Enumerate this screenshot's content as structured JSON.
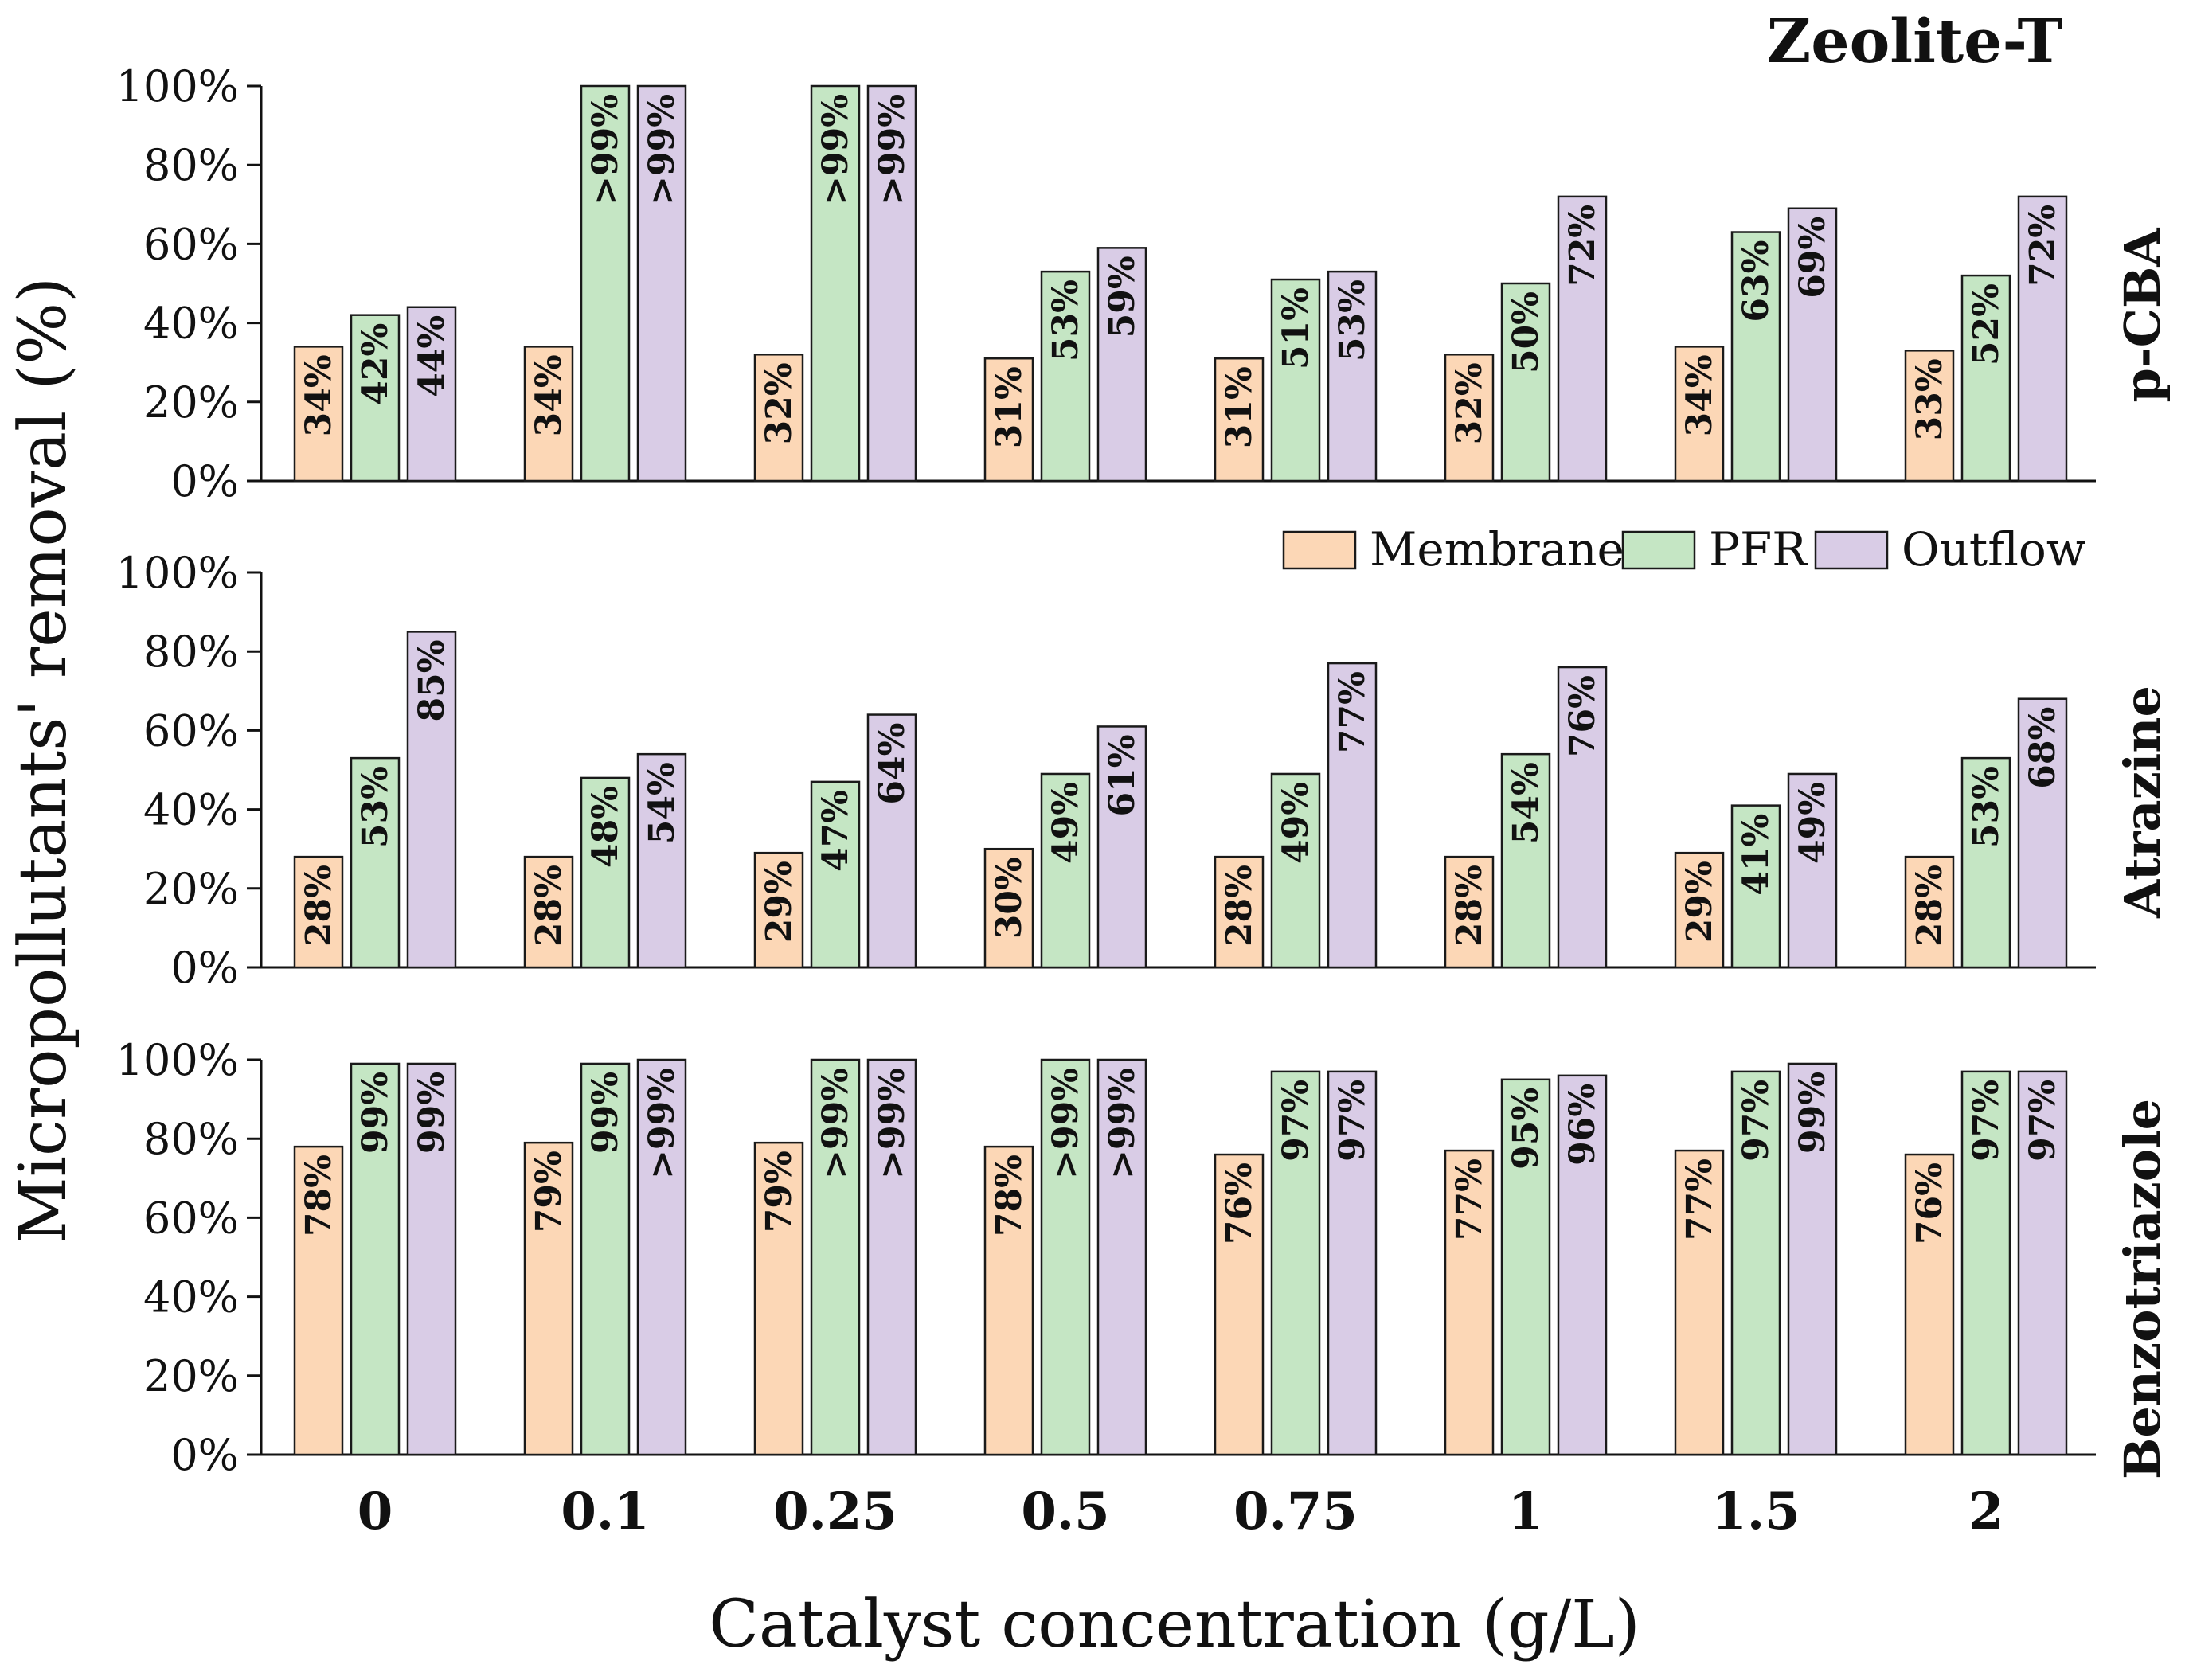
{
  "chart_data": {
    "type": "bar",
    "title": "Zeolite-T",
    "xlabel": "Catalyst concentration (g/L)",
    "ylabel": "Micropollutants' removal (%)",
    "categories": [
      "0",
      "0.1",
      "0.25",
      "0.5",
      "0.75",
      "1",
      "1.5",
      "2"
    ],
    "ylim": [
      0,
      100
    ],
    "yticks": [
      "0%",
      "20%",
      "40%",
      "60%",
      "80%",
      "100%"
    ],
    "legend": {
      "placement": "top-right of Atrazine panel",
      "entries": [
        "Membrane",
        "PFR",
        "Outflow"
      ]
    },
    "colors": {
      "Membrane": "#fcd7b6",
      "PFR": "#c5e6c4",
      "Outflow": "#d9cce6",
      "edge": "#1a1a1a"
    },
    "panels": [
      {
        "name": "p-CBA",
        "series": [
          {
            "name": "Membrane",
            "values": [
              34,
              34,
              32,
              31,
              31,
              32,
              34,
              33
            ],
            "labels": [
              "34%",
              "34%",
              "32%",
              "31%",
              "31%",
              "32%",
              "34%",
              "33%"
            ]
          },
          {
            "name": "PFR",
            "values": [
              42,
              100,
              100,
              53,
              51,
              50,
              63,
              52
            ],
            "labels": [
              "42%",
              ">99%",
              ">99%",
              "53%",
              "51%",
              "50%",
              "63%",
              "52%"
            ]
          },
          {
            "name": "Outflow",
            "values": [
              44,
              100,
              100,
              59,
              53,
              72,
              69,
              72
            ],
            "labels": [
              "44%",
              ">99%",
              ">99%",
              "59%",
              "53%",
              "72%",
              "69%",
              "72%"
            ]
          }
        ]
      },
      {
        "name": "Atrazine",
        "series": [
          {
            "name": "Membrane",
            "values": [
              28,
              28,
              29,
              30,
              28,
              28,
              29,
              28
            ],
            "labels": [
              "28%",
              "28%",
              "29%",
              "30%",
              "28%",
              "28%",
              "29%",
              "28%"
            ]
          },
          {
            "name": "PFR",
            "values": [
              53,
              48,
              47,
              49,
              49,
              54,
              41,
              53
            ],
            "labels": [
              "53%",
              "48%",
              "47%",
              "49%",
              "49%",
              "54%",
              "41%",
              "53%"
            ]
          },
          {
            "name": "Outflow",
            "values": [
              85,
              54,
              64,
              61,
              77,
              76,
              49,
              68
            ],
            "labels": [
              "85%",
              "54%",
              "64%",
              "61%",
              "77%",
              "76%",
              "49%",
              "68%"
            ]
          }
        ]
      },
      {
        "name": "Benzotriazole",
        "series": [
          {
            "name": "Membrane",
            "values": [
              78,
              79,
              79,
              78,
              76,
              77,
              77,
              76
            ],
            "labels": [
              "78%",
              "79%",
              "79%",
              "78%",
              "76%",
              "77%",
              "77%",
              "76%"
            ]
          },
          {
            "name": "PFR",
            "values": [
              99,
              99,
              100,
              100,
              97,
              95,
              97,
              97
            ],
            "labels": [
              "99%",
              "99%",
              ">99%",
              ">99%",
              "97%",
              "95%",
              "97%",
              "97%"
            ]
          },
          {
            "name": "Outflow",
            "values": [
              99,
              100,
              100,
              100,
              97,
              96,
              99,
              97
            ],
            "labels": [
              "99%",
              ">99%",
              ">99%",
              ">99%",
              "97%",
              "96%",
              "99%",
              "97%"
            ]
          }
        ]
      }
    ]
  }
}
